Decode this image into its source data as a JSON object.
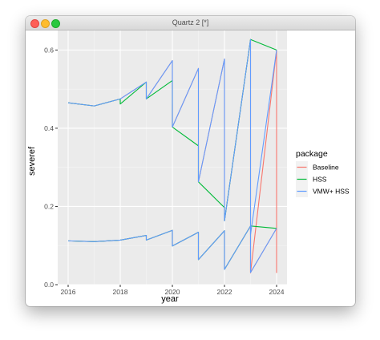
{
  "window": {
    "title": "Quartz 2 [*]"
  },
  "chart_data": {
    "type": "line",
    "title": "",
    "xlabel": "year",
    "ylabel": "severef",
    "xlim": [
      2015.6,
      2024.4
    ],
    "ylim": [
      0,
      0.65
    ],
    "x_ticks": [
      2016,
      2018,
      2020,
      2022,
      2024
    ],
    "x_tick_labels": [
      "2016",
      "2018",
      "2020",
      "2022",
      "2024"
    ],
    "y_ticks": [
      0.0,
      0.2,
      0.4,
      0.6
    ],
    "y_tick_labels": [
      "0.0",
      "0.2",
      "0.4",
      "0.6"
    ],
    "grid": true,
    "legend": {
      "title": "package",
      "placement": "right",
      "entries": [
        {
          "label": "Baseline",
          "color": "#F8766D"
        },
        {
          "label": "HSS",
          "color": "#00BA38"
        },
        {
          "label": "VMW+ HSS",
          "color": "#619CFF"
        }
      ]
    },
    "series": [
      {
        "name": "Baseline",
        "color": "#F8766D",
        "lines": [
          {
            "x": [
              2016,
              2017,
              2018,
              2019,
              2019,
              2020,
              2020,
              2021,
              2021,
              2022,
              2022,
              2023,
              2023,
              2024,
              2024
            ],
            "y": [
              0.465,
              0.457,
              0.475,
              0.518,
              0.475,
              0.573,
              0.403,
              0.553,
              0.263,
              0.577,
              0.163,
              0.627,
              0.03,
              0.6,
              0.03
            ]
          },
          {
            "x": [
              2016,
              2017,
              2018,
              2019,
              2019,
              2020,
              2020,
              2021,
              2021,
              2022,
              2022,
              2023,
              2023,
              2024
            ],
            "y": [
              0.112,
              0.11,
              0.114,
              0.126,
              0.114,
              0.139,
              0.099,
              0.134,
              0.064,
              0.138,
              0.039,
              0.15,
              0.031,
              0.144
            ]
          }
        ]
      },
      {
        "name": "HSS",
        "color": "#00BA38",
        "lines": [
          {
            "x": [
              2016,
              2017,
              2018,
              2018,
              2019,
              2019,
              2020,
              2020,
              2021,
              2021,
              2022,
              2022,
              2023,
              2024
            ],
            "y": [
              0.465,
              0.457,
              0.475,
              0.462,
              0.518,
              0.475,
              0.522,
              0.403,
              0.355,
              0.263,
              0.197,
              0.163,
              0.627,
              0.6
            ]
          },
          {
            "x": [
              2016,
              2017,
              2018,
              2019,
              2019,
              2020,
              2020,
              2021,
              2021,
              2022,
              2022,
              2023,
              2024
            ],
            "y": [
              0.112,
              0.11,
              0.114,
              0.126,
              0.114,
              0.139,
              0.099,
              0.134,
              0.064,
              0.138,
              0.039,
              0.15,
              0.144
            ]
          }
        ]
      },
      {
        "name": "VMW+ HSS",
        "color": "#619CFF",
        "lines": [
          {
            "x": [
              2016,
              2017,
              2018,
              2019,
              2019,
              2020,
              2020,
              2021,
              2021,
              2022,
              2022,
              2023,
              2023,
              2024
            ],
            "y": [
              0.465,
              0.457,
              0.475,
              0.518,
              0.475,
              0.573,
              0.403,
              0.553,
              0.263,
              0.577,
              0.163,
              0.627,
              0.128,
              0.6
            ]
          },
          {
            "x": [
              2016,
              2017,
              2018,
              2019,
              2019,
              2020,
              2020,
              2021,
              2021,
              2022,
              2022,
              2023,
              2023,
              2024
            ],
            "y": [
              0.112,
              0.11,
              0.114,
              0.126,
              0.114,
              0.139,
              0.099,
              0.134,
              0.064,
              0.138,
              0.039,
              0.15,
              0.031,
              0.144
            ]
          }
        ]
      }
    ]
  }
}
